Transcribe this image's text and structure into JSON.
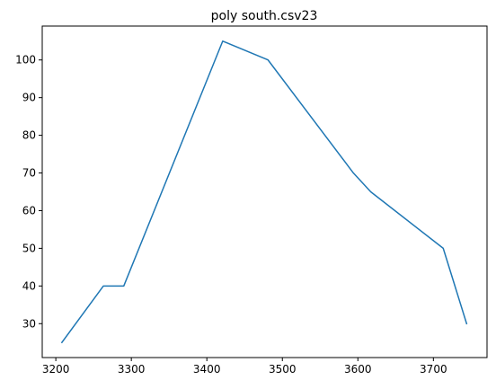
{
  "chart_data": {
    "type": "line",
    "title": "poly south.csv23",
    "xlabel": "",
    "ylabel": "",
    "xlim": [
      3182,
      3771
    ],
    "ylim": [
      21,
      109
    ],
    "x_ticks": [
      3200,
      3300,
      3400,
      3500,
      3600,
      3700
    ],
    "y_ticks": [
      30,
      40,
      50,
      60,
      70,
      80,
      90,
      100
    ],
    "grid": false,
    "series": [
      {
        "color": "#1f77b4",
        "x": [
          3208,
          3263,
          3290,
          3421,
          3481,
          3594,
          3617,
          3713,
          3744
        ],
        "y": [
          25,
          40,
          40,
          105,
          100,
          70,
          65,
          50,
          30
        ]
      }
    ]
  }
}
